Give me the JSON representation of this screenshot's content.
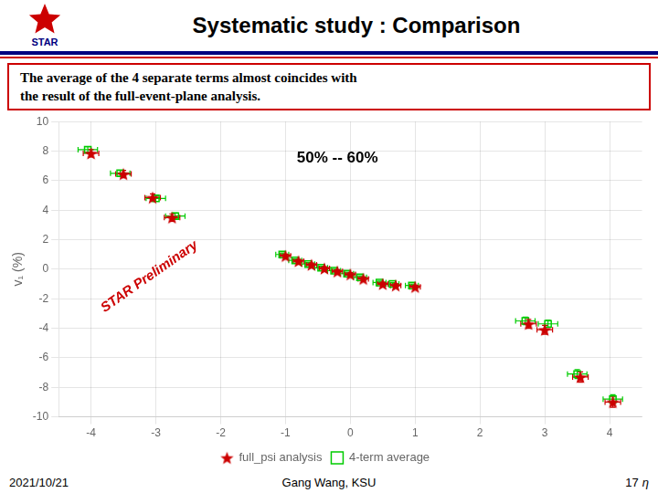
{
  "chart_data": {
    "type": "scatter",
    "title": "Systematic study : Comparison",
    "subtitle": [
      "The average of the 4 separate terms almost coincides with",
      "the result of  the full-event-plane analysis."
    ],
    "logo": "STAR",
    "ylabel": "v₁ (%)",
    "xlim": [
      -4.5,
      4.5
    ],
    "ylim": [
      -10,
      10
    ],
    "xticks": [
      -4,
      -3,
      -2,
      -1,
      0,
      1,
      2,
      3,
      4
    ],
    "yticks": [
      -10,
      -8,
      -6,
      -4,
      -2,
      0,
      2,
      4,
      6,
      8,
      10
    ],
    "grid": true,
    "legend": "bottom",
    "annotations": [
      {
        "text": "50% -- 60%",
        "x": -0.2,
        "y": 7.5
      }
    ],
    "watermark": {
      "text": "STAR Preliminary",
      "x": -3.1,
      "y": -0.5,
      "color": "#cc0000"
    },
    "footer": [
      "2021/10/21",
      "Gang Wang, KSU",
      "17",
      "η"
    ],
    "series": [
      {
        "name": "4-term average",
        "color": "#00cc00",
        "marker": "square",
        "x": [
          -4.05,
          -3.55,
          -3.0,
          -2.7,
          -1.05,
          -0.85,
          -0.65,
          -0.45,
          -0.25,
          -0.05,
          0.15,
          0.45,
          0.65,
          0.95,
          2.7,
          3.05,
          3.5,
          4.05
        ],
        "values": [
          8.1,
          6.5,
          4.8,
          3.6,
          1.0,
          0.6,
          0.35,
          0.1,
          -0.1,
          -0.3,
          -0.55,
          -0.9,
          -1.0,
          -1.1,
          -3.5,
          -3.7,
          -7.1,
          -8.8
        ],
        "xerr": [
          0.15,
          0.15,
          0.15,
          0.15,
          0.1,
          0.1,
          0.1,
          0.1,
          0.1,
          0.1,
          0.1,
          0.1,
          0.1,
          0.1,
          0.15,
          0.15,
          0.15,
          0.15
        ],
        "yerr": [
          0.2,
          0.2,
          0.2,
          0.2,
          0.1,
          0.1,
          0.1,
          0.1,
          0.1,
          0.1,
          0.1,
          0.1,
          0.1,
          0.1,
          0.25,
          0.25,
          0.3,
          0.3
        ]
      },
      {
        "name": "full_psi analysis",
        "color": "#cc0000",
        "marker": "star",
        "x": [
          -4.0,
          -3.5,
          -3.05,
          -2.75,
          -1.0,
          -0.8,
          -0.6,
          -0.4,
          -0.2,
          0.0,
          0.2,
          0.5,
          0.7,
          1.0,
          2.75,
          3.0,
          3.55,
          4.05
        ],
        "values": [
          7.85,
          6.45,
          4.85,
          3.5,
          0.9,
          0.55,
          0.3,
          0.05,
          -0.15,
          -0.35,
          -0.65,
          -1.0,
          -1.1,
          -1.2,
          -3.7,
          -4.1,
          -7.3,
          -9.0
        ],
        "xerr": [
          0.12,
          0.12,
          0.12,
          0.12,
          0.08,
          0.08,
          0.08,
          0.08,
          0.08,
          0.08,
          0.08,
          0.08,
          0.08,
          0.08,
          0.12,
          0.12,
          0.12,
          0.12
        ],
        "yerr": [
          0.25,
          0.25,
          0.25,
          0.25,
          0.12,
          0.12,
          0.12,
          0.12,
          0.12,
          0.12,
          0.12,
          0.12,
          0.12,
          0.12,
          0.3,
          0.3,
          0.35,
          0.35
        ]
      }
    ]
  }
}
